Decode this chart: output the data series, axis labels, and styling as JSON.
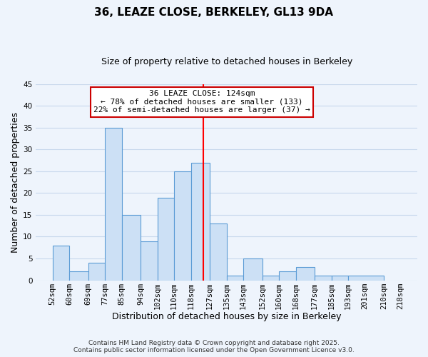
{
  "title": "36, LEAZE CLOSE, BERKELEY, GL13 9DA",
  "subtitle": "Size of property relative to detached houses in Berkeley",
  "xlabel": "Distribution of detached houses by size in Berkeley",
  "ylabel": "Number of detached properties",
  "bar_values": [
    8,
    2,
    4,
    35,
    15,
    9,
    19,
    25,
    27,
    13,
    1,
    5,
    1,
    2,
    3,
    1,
    1,
    1
  ],
  "bin_edges": [
    52,
    60,
    69,
    77,
    85,
    94,
    102,
    110,
    118,
    127,
    135,
    143,
    152,
    160,
    168,
    177,
    185,
    193,
    210
  ],
  "xtick_labels": [
    "52sqm",
    "60sqm",
    "69sqm",
    "77sqm",
    "85sqm",
    "94sqm",
    "102sqm",
    "110sqm",
    "118sqm",
    "127sqm",
    "135sqm",
    "143sqm",
    "152sqm",
    "160sqm",
    "168sqm",
    "177sqm",
    "185sqm",
    "193sqm",
    "201sqm",
    "210sqm",
    "218sqm"
  ],
  "xtick_positions": [
    52,
    60,
    69,
    77,
    85,
    94,
    102,
    110,
    118,
    127,
    135,
    143,
    152,
    160,
    168,
    177,
    185,
    193,
    201,
    210,
    218
  ],
  "ylim": [
    0,
    45
  ],
  "yticks": [
    0,
    5,
    10,
    15,
    20,
    25,
    30,
    35,
    40,
    45
  ],
  "bar_color": "#cce0f5",
  "bar_edge_color": "#5b9bd5",
  "red_line_x": 124,
  "annotation_title": "36 LEAZE CLOSE: 124sqm",
  "annotation_line1": "← 78% of detached houses are smaller (133)",
  "annotation_line2": "22% of semi-detached houses are larger (37) →",
  "footer1": "Contains HM Land Registry data © Crown copyright and database right 2025.",
  "footer2": "Contains public sector information licensed under the Open Government Licence v3.0.",
  "background_color": "#eef4fc",
  "grid_color": "#c8d8ec",
  "title_fontsize": 11,
  "subtitle_fontsize": 9,
  "axis_label_fontsize": 9,
  "tick_fontsize": 7.5,
  "annotation_fontsize": 8,
  "footer_fontsize": 6.5
}
